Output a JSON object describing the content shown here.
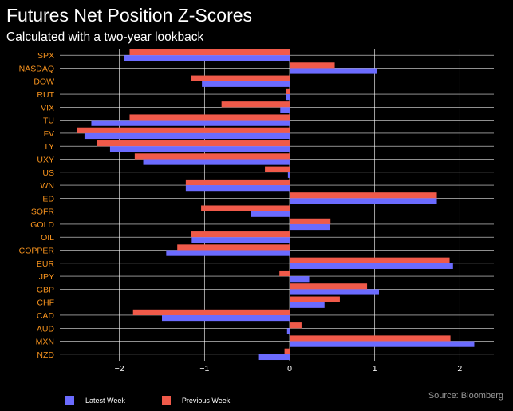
{
  "title": "Futures Net Position Z-Scores",
  "subtitle": "Calculated with a two-year lookback",
  "source": "Source: Bloomberg",
  "colors": {
    "latest": "#6b6bff",
    "previous": "#f05a4a",
    "category_label": "#f7931e",
    "tick_label": "#ffffff",
    "grid": "#ffffff"
  },
  "chart_data": {
    "type": "bar",
    "orientation": "horizontal",
    "categories": [
      "SPX",
      "NASDAQ",
      "DOW",
      "RUT",
      "VIX",
      "TU",
      "FV",
      "TY",
      "UXY",
      "US",
      "WN",
      "ED",
      "SOFR",
      "GOLD",
      "OIL",
      "COPPER",
      "EUR",
      "JPY",
      "GBP",
      "CHF",
      "CAD",
      "AUD",
      "MXN",
      "NZD"
    ],
    "series": [
      {
        "name": "Latest Week",
        "values": [
          -1.95,
          1.03,
          -1.03,
          -0.04,
          -0.11,
          -2.33,
          -2.41,
          -2.11,
          -1.72,
          -0.02,
          -1.22,
          1.73,
          -0.45,
          0.47,
          -1.15,
          -1.45,
          1.92,
          0.23,
          1.05,
          0.41,
          -1.5,
          -0.03,
          2.17,
          -0.36
        ]
      },
      {
        "name": "Previous Week",
        "values": [
          -1.88,
          0.53,
          -1.16,
          -0.04,
          -0.8,
          -1.88,
          -2.5,
          -2.26,
          -1.82,
          -0.29,
          -1.22,
          1.73,
          -1.04,
          0.48,
          -1.16,
          -1.32,
          1.88,
          -0.12,
          0.91,
          0.59,
          -1.84,
          0.14,
          1.89,
          -0.06
        ]
      }
    ],
    "xlim": [
      -2.7,
      2.4
    ],
    "xticks": [
      -2,
      -1,
      0,
      1,
      2
    ],
    "xtick_labels": [
      "−2",
      "−1",
      "0",
      "1",
      "2"
    ],
    "grid": true,
    "legend_position": "bottom-left"
  }
}
